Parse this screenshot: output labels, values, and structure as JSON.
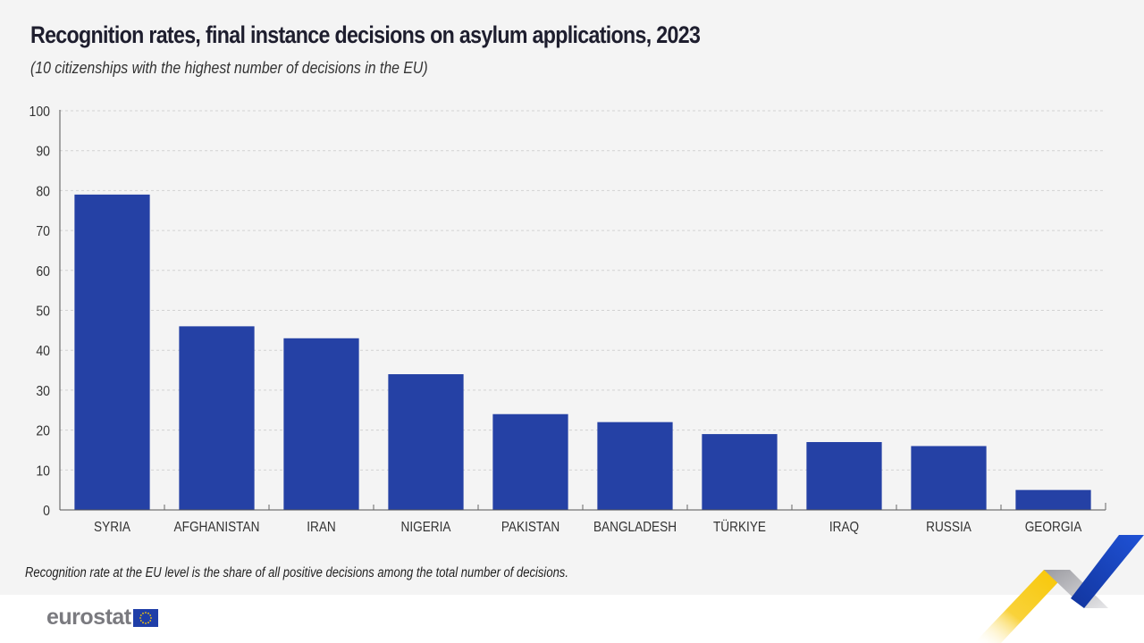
{
  "header": {
    "title": "Recognition rates, final instance decisions on asylum applications, 2023",
    "subtitle": "(10 citizenships with the highest number of decisions in the EU)"
  },
  "footer": {
    "note": "Recognition rate at the EU level is the share of all positive decisions among the total number of decisions.",
    "logo_text": "eurostat",
    "logo_flag": "eu-flag-icon"
  },
  "colors": {
    "bar": "#2541a5",
    "background": "#f4f4f4",
    "ribbon_yellow": "#f7c600",
    "ribbon_grey": "#b8b8bc",
    "ribbon_blue": "#1d46c4"
  },
  "chart_data": {
    "type": "bar",
    "title": "Recognition rates, final instance decisions on asylum applications, 2023",
    "subtitle": "(10 citizenships with the highest number of decisions in the EU)",
    "xlabel": "",
    "ylabel": "",
    "categories": [
      "SYRIA",
      "AFGHANISTAN",
      "IRAN",
      "NIGERIA",
      "PAKISTAN",
      "BANGLADESH",
      "TÜRKIYE",
      "IRAQ",
      "RUSSIA",
      "GEORGIA"
    ],
    "values": [
      79,
      46,
      43,
      34,
      24,
      22,
      19,
      17,
      16,
      5
    ],
    "ylim": [
      0,
      100
    ],
    "yticks": [
      0,
      10,
      20,
      30,
      40,
      50,
      60,
      70,
      80,
      90,
      100
    ],
    "grid": true,
    "legend": "none"
  }
}
